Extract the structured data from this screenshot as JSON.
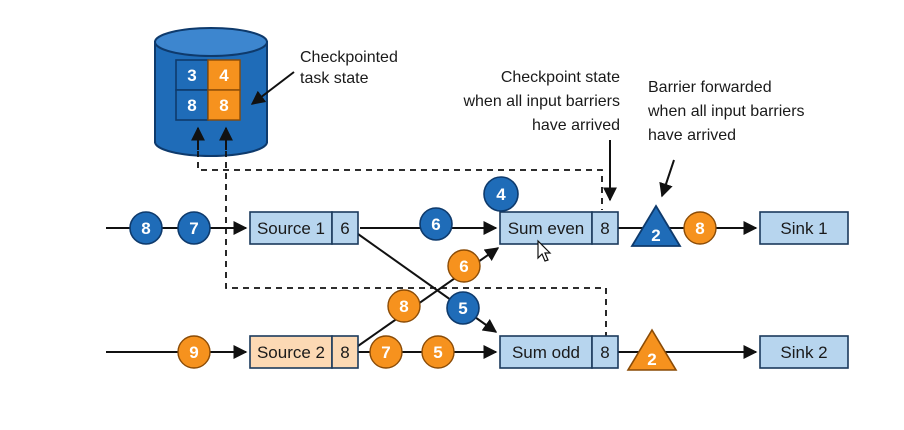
{
  "captions": {
    "checkpointed": [
      "Checkpointed",
      "task state"
    ],
    "checkpoint_state": [
      "Checkpoint state",
      "when all input barriers",
      "have arrived"
    ],
    "barrier_forwarded": [
      "Barrier forwarded",
      "when all input barriers",
      "have arrived"
    ]
  },
  "state_store": {
    "cells": [
      "3",
      "4",
      "8",
      "8"
    ]
  },
  "operators": {
    "source1": {
      "label": "Source 1",
      "state": "6"
    },
    "source2": {
      "label": "Source 2",
      "state": "8"
    },
    "sum_even": {
      "label": "Sum even",
      "state": "8"
    },
    "sum_odd": {
      "label": "Sum odd",
      "state": "8"
    },
    "sink1": {
      "label": "Sink 1"
    },
    "sink2": {
      "label": "Sink 2"
    }
  },
  "records": {
    "in1_a": "8",
    "in1_b": "7",
    "s1_out": "6",
    "even_top": "4",
    "cross_6": "6",
    "cross_8": "8",
    "cross_5": "5",
    "in2": "9",
    "s2_out_a": "7",
    "s2_out_b": "5",
    "even_out": "8"
  },
  "barriers": {
    "top": "2",
    "bottom": "2"
  },
  "colors": {
    "blue": "#1f6cb8",
    "orange": "#f6921e",
    "box": "#b7d5ee",
    "source2_box": "#fcd9b4"
  }
}
